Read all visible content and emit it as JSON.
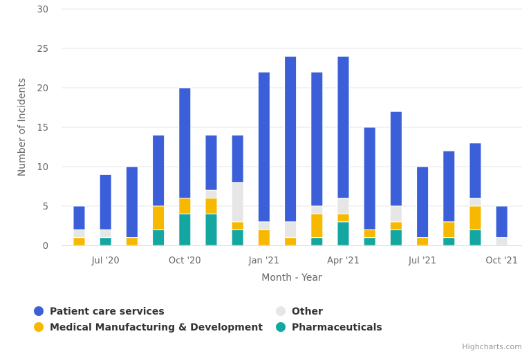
{
  "chart_data": {
    "type": "bar",
    "stacked": true,
    "categories": [
      "Jun '20",
      "Jul '20",
      "Aug '20",
      "Sep '20",
      "Oct '20",
      "Nov '20",
      "Dec '20",
      "Jan '21",
      "Feb '21",
      "Mar '21",
      "Apr '21",
      "May '21",
      "Jun '21",
      "Jul '21",
      "Aug '21",
      "Sep '21",
      "Oct '21"
    ],
    "x_tick_labels": [
      "Jul '20",
      "Oct '20",
      "Jan '21",
      "Apr '21",
      "Jul '21",
      "Oct '21"
    ],
    "xlabel": "Month - Year",
    "ylabel": "Number of Incidents",
    "ylim": [
      0,
      30
    ],
    "yticks": [
      0,
      5,
      10,
      15,
      20,
      25,
      30
    ],
    "grid": true,
    "legend_position": "bottom",
    "series": [
      {
        "name": "Patient care services",
        "color": "#3a5fd8",
        "values": [
          3,
          7,
          9,
          9,
          14,
          7,
          6,
          19,
          21,
          17,
          18,
          13,
          12,
          9,
          9,
          7,
          4
        ]
      },
      {
        "name": "Other",
        "color": "#e6e6e6",
        "values": [
          1,
          1,
          0,
          0,
          0,
          1,
          5,
          1,
          2,
          1,
          2,
          0,
          2,
          0,
          0,
          1,
          1
        ]
      },
      {
        "name": "Medical Manufacturing & Development",
        "color": "#f7b800",
        "values": [
          1,
          0,
          1,
          3,
          2,
          2,
          1,
          2,
          1,
          3,
          1,
          1,
          1,
          1,
          2,
          3,
          0
        ]
      },
      {
        "name": "Pharmaceuticals",
        "color": "#14a6a0",
        "values": [
          0,
          1,
          0,
          2,
          4,
          4,
          2,
          0,
          0,
          1,
          3,
          1,
          2,
          0,
          1,
          2,
          0
        ]
      }
    ],
    "stack_order_bottom_to_top": [
      "Pharmaceuticals",
      "Medical Manufacturing & Development",
      "Other",
      "Patient care services"
    ]
  },
  "credits": "Highcharts.com"
}
